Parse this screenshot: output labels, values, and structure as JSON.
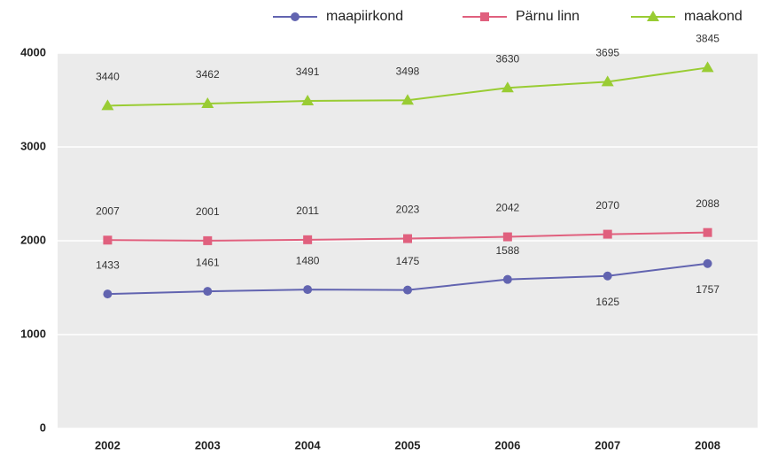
{
  "chart_data": {
    "type": "line",
    "categories": [
      "2002",
      "2003",
      "2004",
      "2005",
      "2006",
      "2007",
      "2008"
    ],
    "series": [
      {
        "name": "maapiirkond",
        "color": "#6264b0",
        "marker": "circle",
        "values": [
          1433,
          1461,
          1480,
          1475,
          1588,
          1625,
          1757
        ]
      },
      {
        "name": "Pärnu linn",
        "color": "#e0607e",
        "marker": "square",
        "values": [
          2007,
          2001,
          2011,
          2023,
          2042,
          2070,
          2088
        ]
      },
      {
        "name": "maakond",
        "color": "#99cc33",
        "marker": "triangle",
        "values": [
          3440,
          3462,
          3491,
          3498,
          3630,
          3695,
          3845
        ]
      }
    ],
    "ylim": [
      0,
      4000
    ],
    "yticks": [
      0,
      1000,
      2000,
      3000,
      4000
    ],
    "grid": true,
    "legend": "top-right"
  }
}
